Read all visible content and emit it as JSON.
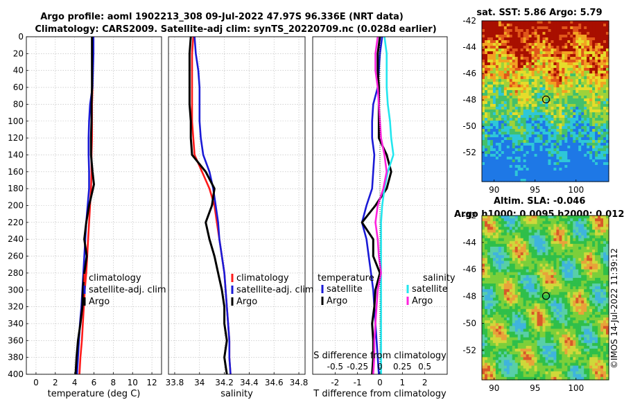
{
  "titles": {
    "line1": "Argo profile: aoml 1902213_308 09-Jul-2022 47.97S 96.336E (NRT data)",
    "line2": "Climatology: CARS2009. Satellite-adj clim: synTS_20220709.nc (0.028d earlier)",
    "sst": "sat. SST: 5.86 Argo: 5.79",
    "sla1": "Altim. SLA: -0.046",
    "sla2": "Argo h1000: 0.0095 h2000: 0.012"
  },
  "watermark": "©IMOS 14-Jul-2022 11:39:12",
  "colors": {
    "climatology": "#ff1a1a",
    "satellite": "#1a1ad6",
    "argo": "#000000",
    "cyan": "#22e6ee",
    "magenta": "#ff22dd"
  },
  "chart_data": [
    {
      "type": "line",
      "name": "temperature-profile",
      "xlabel": "temperature (deg C)",
      "ylabel": "depth",
      "xlim": [
        -1,
        13
      ],
      "ylim": [
        0,
        400
      ],
      "xticks": [
        0,
        2,
        4,
        6,
        8,
        10,
        12
      ],
      "yticks": [
        0,
        20,
        40,
        60,
        80,
        100,
        120,
        140,
        160,
        180,
        200,
        220,
        240,
        260,
        280,
        300,
        320,
        340,
        360,
        380,
        400
      ],
      "legend": [
        "climatology",
        "satellite-adj. clim",
        "Argo"
      ],
      "series": [
        {
          "name": "climatology",
          "color_key": "climatology",
          "x": [
            5.9,
            5.9,
            5.85,
            5.85,
            5.8,
            5.8,
            5.8,
            5.75,
            5.75,
            5.7,
            5.6,
            5.5,
            5.4,
            5.3,
            5.2,
            5.05,
            4.95,
            4.85,
            4.75,
            4.6,
            4.5
          ],
          "y": [
            0,
            20,
            40,
            60,
            80,
            100,
            120,
            140,
            160,
            180,
            200,
            220,
            240,
            260,
            280,
            300,
            320,
            340,
            360,
            380,
            400
          ]
        },
        {
          "name": "satellite-adj. clim",
          "color_key": "satellite",
          "x": [
            5.95,
            5.95,
            5.9,
            5.85,
            5.6,
            5.5,
            5.45,
            5.45,
            5.5,
            5.5,
            5.35,
            5.2,
            5.1,
            5.0,
            4.9,
            4.8,
            4.7,
            4.55,
            4.45,
            4.35,
            4.25
          ],
          "y": [
            0,
            20,
            40,
            60,
            80,
            100,
            120,
            140,
            160,
            180,
            200,
            220,
            240,
            260,
            280,
            300,
            320,
            340,
            360,
            380,
            400
          ]
        },
        {
          "name": "Argo",
          "color_key": "argo",
          "x": [
            5.8,
            5.8,
            5.8,
            5.8,
            5.75,
            5.75,
            5.7,
            5.7,
            5.85,
            6.0,
            5.5,
            5.2,
            5.0,
            5.25,
            5.0,
            4.85,
            4.8,
            4.6,
            4.35,
            4.2,
            4.15,
            4.1
          ],
          "y": [
            0,
            20,
            40,
            60,
            80,
            100,
            120,
            140,
            160,
            175,
            200,
            220,
            240,
            260,
            280,
            300,
            320,
            340,
            360,
            380,
            390,
            400
          ]
        }
      ]
    },
    {
      "type": "line",
      "name": "salinity-profile",
      "xlabel": "salinity",
      "xlim": [
        33.75,
        34.85
      ],
      "ylim": [
        0,
        400
      ],
      "xticks": [
        33.8,
        34,
        34.2,
        34.4,
        34.6,
        34.8
      ],
      "legend": [
        "climatology",
        "satellite-adj. clim",
        "Argo"
      ],
      "series": [
        {
          "name": "climatology",
          "color_key": "climatology",
          "x": [
            33.95,
            33.94,
            33.94,
            33.94,
            33.94,
            33.94,
            33.95,
            33.96,
            34.02,
            34.08,
            34.12,
            34.14,
            34.16,
            34.18,
            34.2,
            34.21,
            34.22,
            34.23,
            34.24,
            34.24,
            34.25
          ],
          "y": [
            0,
            20,
            40,
            60,
            80,
            100,
            120,
            140,
            160,
            180,
            200,
            220,
            240,
            260,
            280,
            300,
            320,
            340,
            360,
            380,
            400
          ]
        },
        {
          "name": "satellite-adj. clim",
          "color_key": "satellite",
          "x": [
            33.96,
            33.97,
            33.99,
            34.0,
            34.0,
            34.0,
            34.01,
            34.03,
            34.08,
            34.11,
            34.13,
            34.15,
            34.16,
            34.18,
            34.2,
            34.21,
            34.22,
            34.23,
            34.24,
            34.24,
            34.25
          ],
          "y": [
            0,
            20,
            40,
            60,
            80,
            100,
            120,
            140,
            160,
            180,
            200,
            220,
            240,
            260,
            280,
            300,
            320,
            340,
            360,
            380,
            400
          ]
        },
        {
          "name": "Argo",
          "color_key": "argo",
          "x": [
            33.93,
            33.92,
            33.92,
            33.92,
            33.92,
            33.93,
            33.93,
            33.94,
            34.05,
            34.12,
            34.1,
            34.05,
            34.08,
            34.12,
            34.15,
            34.18,
            34.2,
            34.2,
            34.22,
            34.2,
            34.21,
            34.22
          ],
          "y": [
            0,
            20,
            40,
            60,
            80,
            100,
            120,
            140,
            160,
            180,
            200,
            220,
            240,
            260,
            280,
            300,
            320,
            340,
            360,
            380,
            390,
            400
          ]
        }
      ]
    },
    {
      "type": "line",
      "name": "difference-profile",
      "xlabel": "T difference from climatology",
      "toplabel": "S difference from climatology",
      "xlim": [
        -3,
        3
      ],
      "ylim": [
        0,
        400
      ],
      "xticks": [
        -2,
        -1,
        0,
        1,
        2
      ],
      "top_ticks": [
        {
          "v": -2,
          "t": "-0.5"
        },
        {
          "v": -1,
          "t": "-0.25"
        },
        {
          "v": 0,
          "t": "0"
        },
        {
          "v": 1,
          "t": "0.25"
        },
        {
          "v": 2,
          "t": "0.5"
        }
      ],
      "legend_left_head": "temperature",
      "legend_right_head": "salinity",
      "legend_left": [
        "satellite",
        "Argo"
      ],
      "legend_right": [
        "satellite",
        "Argo"
      ],
      "series": [
        {
          "name": "T satellite",
          "color_key": "satellite",
          "x": [
            0.1,
            0.0,
            -0.05,
            -0.1,
            -0.3,
            -0.35,
            -0.35,
            -0.25,
            -0.3,
            -0.35,
            -0.6,
            -0.8,
            -0.6,
            -0.5,
            -0.4,
            -0.3,
            -0.25,
            -0.2,
            -0.15,
            -0.1,
            -0.05
          ],
          "y": [
            0,
            20,
            40,
            60,
            80,
            100,
            120,
            140,
            160,
            180,
            200,
            220,
            240,
            260,
            280,
            300,
            320,
            340,
            360,
            380,
            400
          ]
        },
        {
          "name": "T Argo",
          "color_key": "argo",
          "x": [
            0.0,
            -0.1,
            -0.1,
            -0.05,
            -0.05,
            -0.05,
            -0.05,
            0.3,
            0.5,
            0.3,
            -0.2,
            -0.8,
            -0.3,
            -0.3,
            0.0,
            -0.2,
            -0.25,
            -0.35,
            -0.3,
            -0.3,
            -0.35
          ],
          "y": [
            0,
            20,
            40,
            60,
            80,
            100,
            120,
            140,
            160,
            180,
            200,
            220,
            240,
            260,
            280,
            300,
            320,
            340,
            360,
            380,
            400
          ]
        },
        {
          "name": "S satellite",
          "color_key": "cyan",
          "x": [
            0.2,
            0.3,
            0.3,
            0.3,
            0.35,
            0.45,
            0.5,
            0.6,
            0.35,
            0.2,
            0.1,
            0.05,
            0.05,
            0.05,
            0.05,
            0.05,
            0.05,
            0.05,
            0.05,
            0.05,
            0.05
          ],
          "y": [
            0,
            20,
            40,
            60,
            80,
            100,
            120,
            140,
            160,
            180,
            200,
            220,
            240,
            260,
            280,
            300,
            320,
            340,
            360,
            380,
            400
          ]
        },
        {
          "name": "S Argo",
          "color_key": "magenta",
          "x": [
            -0.1,
            -0.2,
            -0.2,
            -0.1,
            -0.05,
            0.0,
            0.05,
            0.2,
            0.3,
            0.15,
            -0.1,
            -0.2,
            -0.1,
            -0.05,
            0.05,
            -0.1,
            -0.15,
            -0.2,
            -0.25,
            -0.25,
            -0.3
          ],
          "y": [
            0,
            20,
            40,
            60,
            80,
            100,
            120,
            140,
            160,
            180,
            200,
            220,
            240,
            260,
            280,
            300,
            320,
            340,
            360,
            380,
            400
          ]
        }
      ]
    },
    {
      "type": "heatmap",
      "name": "sst-map",
      "title": "sat. SST: 5.86 Argo: 5.79",
      "xlim": [
        88.5,
        104
      ],
      "ylim": [
        -54.2,
        -42
      ],
      "xticks": [
        90,
        95,
        100
      ],
      "yticks": [
        -42,
        -44,
        -46,
        -48,
        -50,
        -52
      ],
      "marker": {
        "lon": 96.336,
        "lat": -47.97
      }
    },
    {
      "type": "heatmap",
      "name": "sla-map",
      "title": "Altim. SLA: -0.046",
      "xlim": [
        88.5,
        104
      ],
      "ylim": [
        -54.2,
        -42
      ],
      "xticks": [
        90,
        95,
        100
      ],
      "yticks": [
        -42,
        -44,
        -46,
        -48,
        -50,
        -52
      ],
      "marker": {
        "lon": 96.336,
        "lat": -47.97
      }
    }
  ]
}
